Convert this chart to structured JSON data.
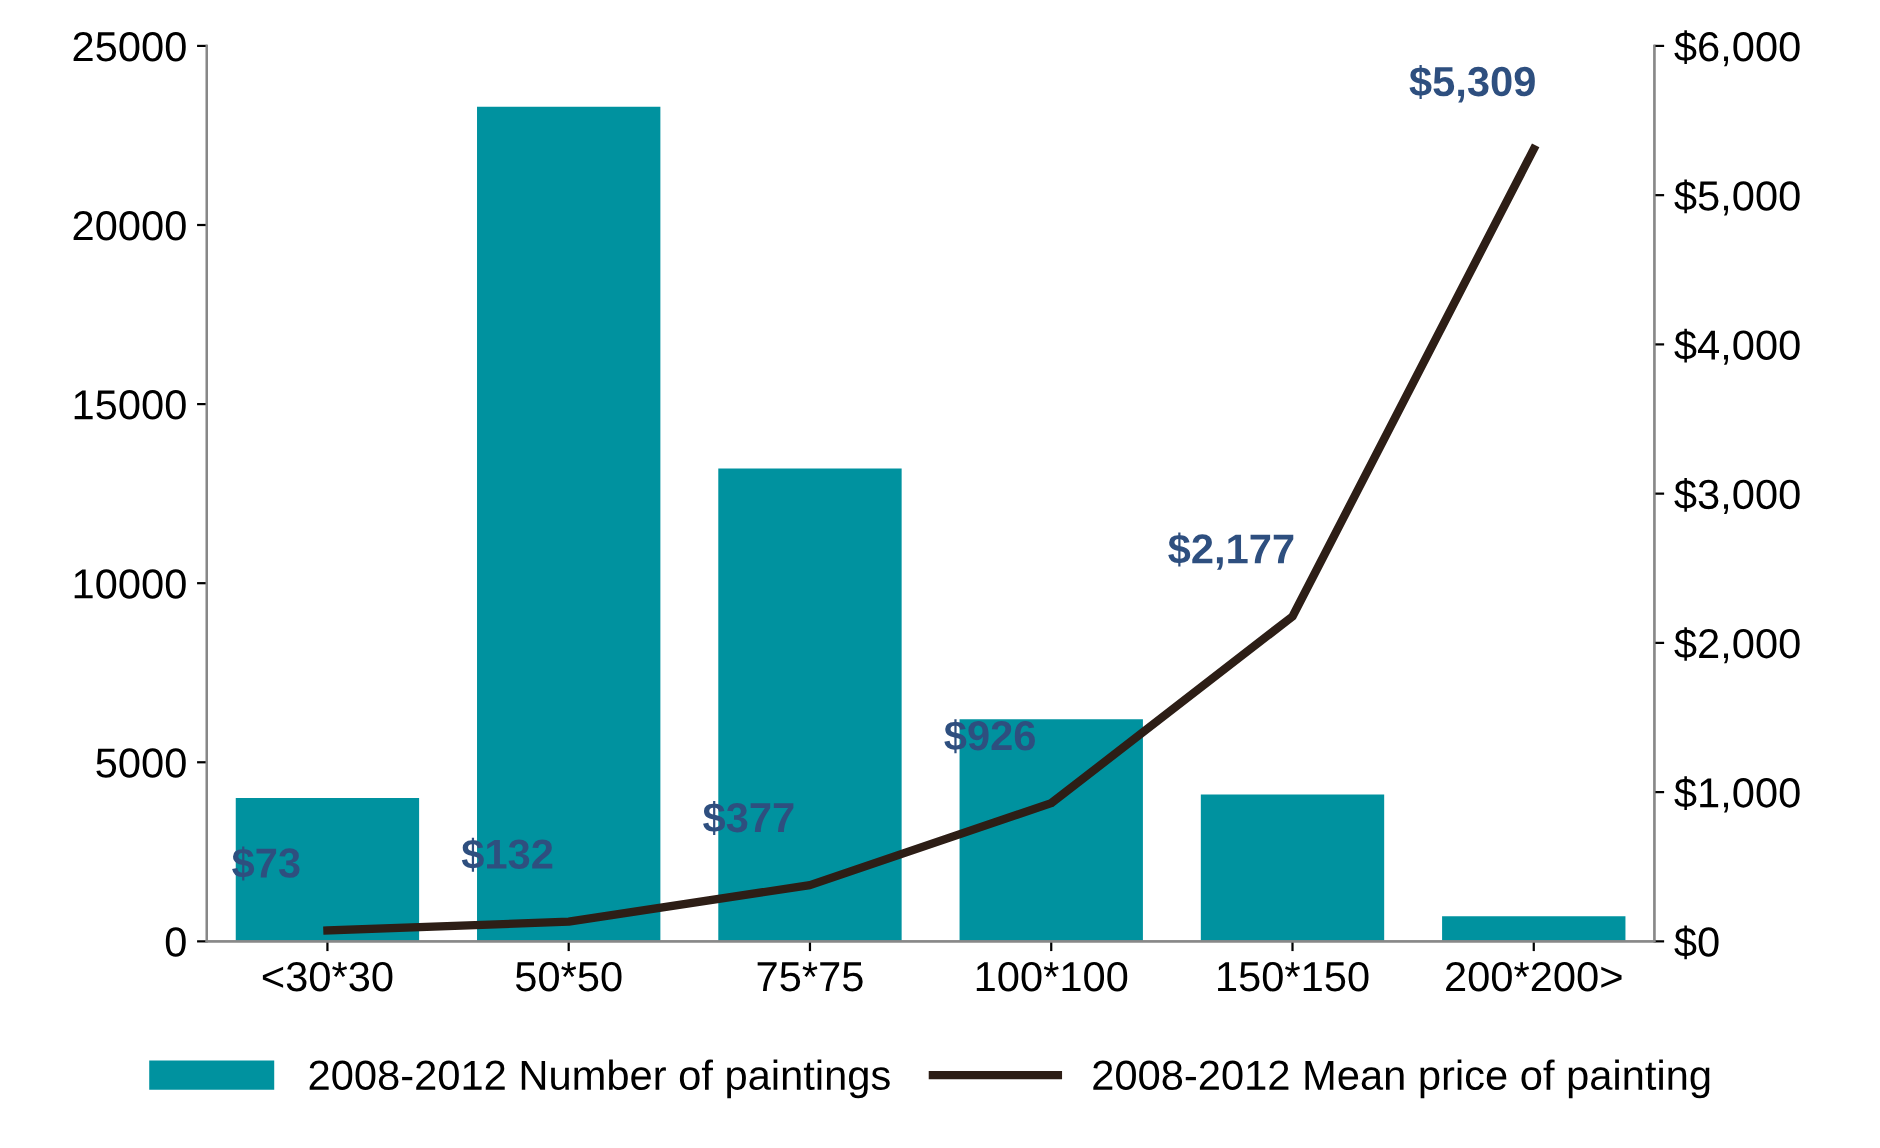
{
  "chart_data": {
    "type": "bar",
    "categories": [
      "<30*30",
      "50*50",
      "75*75",
      "100*100",
      "150*150",
      "200*200>"
    ],
    "series": [
      {
        "name": "2008-2012 Number of paintings",
        "color": "#00929f",
        "values": [
          4000,
          23300,
          13200,
          6200,
          4100,
          700
        ]
      },
      {
        "name": "2008-2012 Mean price of painting",
        "type": "line",
        "axis": "y2",
        "color": "#2d1e16",
        "values": [
          73,
          132,
          377,
          926,
          2177,
          5309
        ],
        "value_labels": [
          "$73",
          "$132",
          "$377",
          "$926",
          "$2,177",
          "$5,309"
        ]
      }
    ],
    "ylim": [
      0,
      25000
    ],
    "yticks": [
      0,
      5000,
      10000,
      15000,
      20000,
      25000
    ],
    "y2lim": [
      0,
      6000
    ],
    "y2ticks": [
      {
        "value": 0,
        "label": "$0"
      },
      {
        "value": 1000,
        "label": "$1,000"
      },
      {
        "value": 2000,
        "label": "$2,000"
      },
      {
        "value": 3000,
        "label": "$3,000"
      },
      {
        "value": 4000,
        "label": "$4,000"
      },
      {
        "value": 5000,
        "label": "$5,000"
      },
      {
        "value": 6000,
        "label": "$6,000"
      }
    ],
    "grid": false,
    "legend": "bottom",
    "marker": "none",
    "line_style": "solid"
  }
}
